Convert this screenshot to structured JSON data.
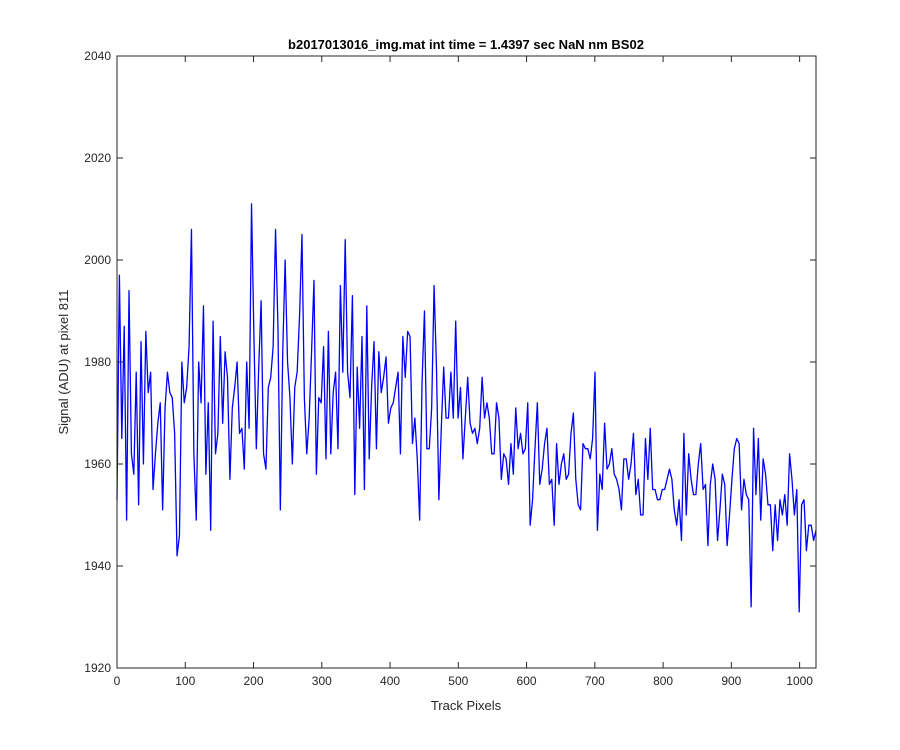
{
  "chart_data": {
    "type": "line",
    "title": "b2017013016_img.mat int time = 1.4397 sec  NaN nm BS02",
    "xlabel": "Track Pixels",
    "ylabel": "Signal (ADU) at pixel 811",
    "xlim": [
      0,
      1024
    ],
    "ylim": [
      1920,
      2040
    ],
    "xticks": [
      "0",
      "100",
      "200",
      "300",
      "400",
      "500",
      "600",
      "700",
      "800",
      "900",
      "1000"
    ],
    "yticks": [
      "1920",
      "1940",
      "1960",
      "1980",
      "2000",
      "2020",
      "2040"
    ],
    "grid": false,
    "legend": "none",
    "line_color": "#0000ff",
    "series": [
      {
        "values": [
          1953,
          1997,
          1965,
          1987,
          1949,
          1994,
          1962,
          1958,
          1978,
          1952,
          1984,
          1960,
          1986,
          1974,
          1978,
          1955,
          1962,
          1968,
          1972,
          1951,
          1971,
          1978,
          1974,
          1973,
          1966,
          1942,
          1946,
          1980,
          1972,
          1975,
          1983,
          2006,
          1962,
          1949,
          1980,
          1972,
          1991,
          1958,
          1972,
          1947,
          1988,
          1962,
          1966,
          1985,
          1968,
          1982,
          1977,
          1957,
          1971,
          1975,
          1980,
          1966,
          1967,
          1959,
          1980,
          1967,
          2011,
          1985,
          1963,
          1979,
          1992,
          1962,
          1959,
          1975,
          1977,
          1983,
          2006,
          1987,
          1951,
          1982,
          2000,
          1980,
          1973,
          1960,
          1975,
          1978,
          1989,
          2005,
          1973,
          1962,
          1969,
          1982,
          1996,
          1958,
          1973,
          1972,
          1983,
          1961,
          1986,
          1962,
          1974,
          1978,
          1963,
          1995,
          1978,
          2004,
          1978,
          1973,
          1993,
          1954,
          1979,
          1967,
          1985,
          1955,
          1991,
          1961,
          1975,
          1984,
          1963,
          1982,
          1974,
          1977,
          1981,
          1968,
          1971,
          1972,
          1975,
          1978,
          1962,
          1985,
          1977,
          1986,
          1985,
          1964,
          1969,
          1961,
          1949,
          1976,
          1990,
          1963,
          1963,
          1971,
          1995,
          1979,
          1953,
          1967,
          1979,
          1969,
          1969,
          1978,
          1969,
          1988,
          1969,
          1975,
          1961,
          1969,
          1977,
          1968,
          1966,
          1967,
          1964,
          1967,
          1977,
          1969,
          1972,
          1969,
          1962,
          1962,
          1972,
          1969,
          1957,
          1962,
          1961,
          1956,
          1964,
          1958,
          1971,
          1963,
          1966,
          1962,
          1963,
          1972,
          1948,
          1953,
          1963,
          1972,
          1956,
          1959,
          1964,
          1967,
          1956,
          1957,
          1948,
          1964,
          1956,
          1960,
          1962,
          1957,
          1958,
          1966,
          1970,
          1957,
          1952,
          1951,
          1964,
          1963,
          1963,
          1961,
          1965,
          1978,
          1947,
          1958,
          1955,
          1968,
          1959,
          1960,
          1963,
          1958,
          1957,
          1955,
          1951,
          1961,
          1961,
          1957,
          1960,
          1966,
          1954,
          1957,
          1950,
          1950,
          1965,
          1957,
          1967,
          1955,
          1955,
          1953,
          1953,
          1955,
          1955,
          1957,
          1959,
          1957,
          1951,
          1948,
          1953,
          1945,
          1966,
          1950,
          1962,
          1957,
          1954,
          1954,
          1960,
          1964,
          1955,
          1956,
          1944,
          1956,
          1960,
          1957,
          1945,
          1951,
          1958,
          1956,
          1944,
          1950,
          1957,
          1963,
          1965,
          1964,
          1951,
          1957,
          1954,
          1953,
          1932,
          1967,
          1954,
          1965,
          1949,
          1961,
          1958,
          1952,
          1952,
          1943,
          1952,
          1945,
          1953,
          1950,
          1954,
          1948,
          1962,
          1957,
          1950,
          1955,
          1931,
          1952,
          1953,
          1943,
          1948,
          1948,
          1945,
          1947
        ]
      }
    ]
  }
}
